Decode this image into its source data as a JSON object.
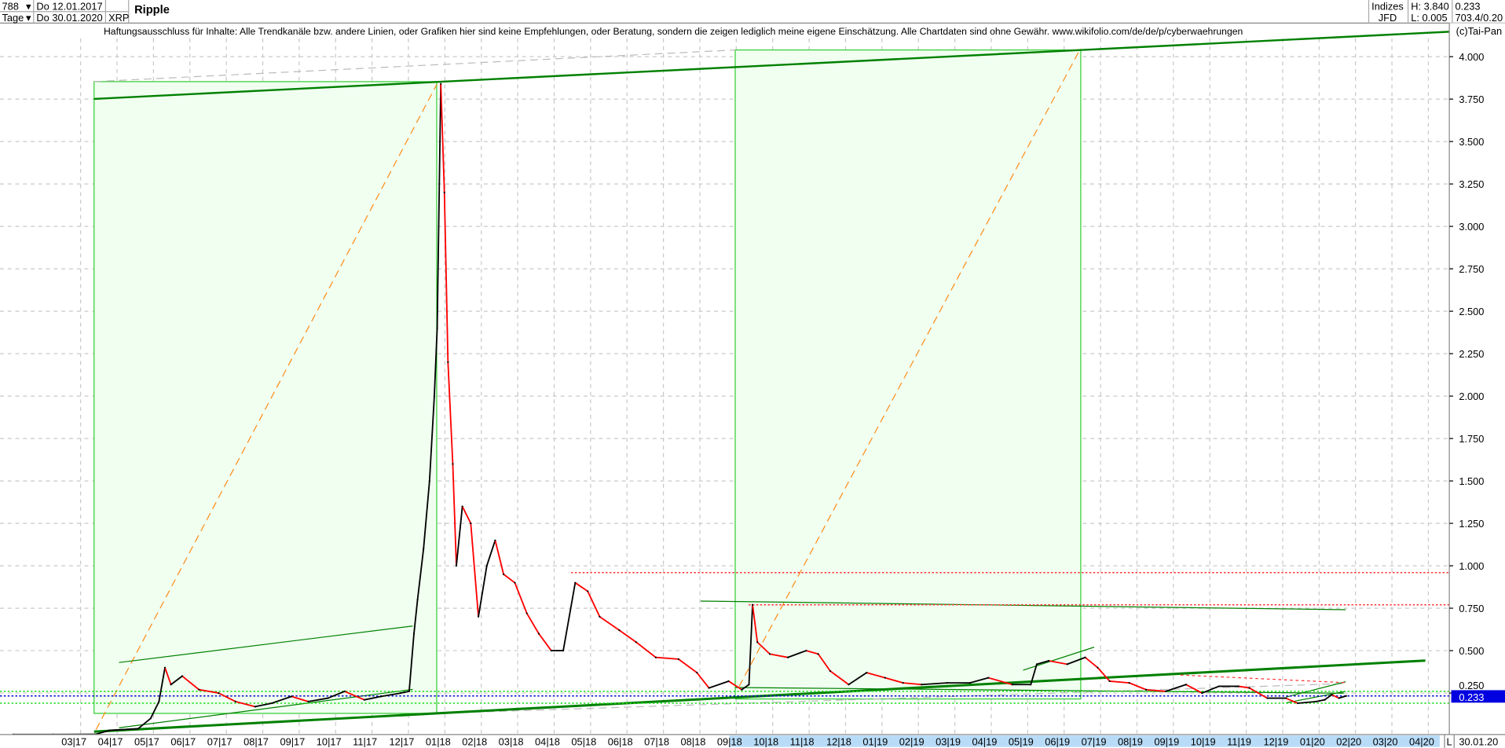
{
  "header": {
    "bars_count": "788",
    "interval": "Tage",
    "date_from": "Do 12.01.2017",
    "date_to": "Do 30.01.2020",
    "symbol": "XRP",
    "title": "Ripple",
    "market": "Indizes",
    "exchange": "JFD",
    "high": "H: 3.840",
    "low": "L: 0.005",
    "last": "0.233",
    "extra": "703.4/0.20",
    "disclaimer": "Haftungsausschluss für Inhalte: Alle Trendkanäle bzw. andere Linien, oder Grafiken hier sind keine Empfehlungen, oder Beratung, sondern die zeigen lediglich meine eigene Einschätzung. Alle Chartdaten sind ohne Gewähr.  www.wikifolio.com/de/de/p/cyberwaehrungen",
    "copyright": "(c)Tai-Pan"
  },
  "chart_data": {
    "type": "line",
    "title": "Ripple",
    "y_ticks": [
      "0.250",
      "0.500",
      "0.750",
      "1.000",
      "1.250",
      "1.500",
      "1.750",
      "2.000",
      "2.250",
      "2.500",
      "2.750",
      "3.000",
      "3.250",
      "3.500",
      "3.750",
      "4.000"
    ],
    "x_ticks": [
      "03|17",
      "04|17",
      "05|17",
      "06|17",
      "07|17",
      "08|17",
      "09|17",
      "10|17",
      "11|17",
      "12|17",
      "01|18",
      "02|18",
      "03|18",
      "04|18",
      "05|18",
      "06|18",
      "07|18",
      "08|18",
      "09|18",
      "10|18",
      "11|18",
      "12|18",
      "01|19",
      "02|19",
      "03|19",
      "04|19",
      "05|19",
      "06|19",
      "07|19",
      "08|19",
      "09|19",
      "10|19",
      "11|19",
      "12|19",
      "01|20",
      "02|20",
      "03|20",
      "04|20"
    ],
    "ylim": [
      0,
      4.1
    ],
    "grid": true,
    "last_value_label": "0.233",
    "axis_end_label": "L",
    "axis_end_date": "30.01.20",
    "colors": {
      "up": "#000000",
      "down": "#ff0000",
      "box": "#33cc33",
      "box_fill": "#f0fff0",
      "trend": "#008000",
      "diagonal": "#ff8c1a",
      "last_price": "#0000cc",
      "highlight": "#b8dcf8"
    },
    "levels": [
      {
        "value": 0.96,
        "color": "#ff3333",
        "style": "dotted"
      },
      {
        "value": 0.77,
        "color": "#ff3333",
        "style": "dotted"
      },
      {
        "value": 0.26,
        "color": "#22dd22",
        "style": "dotted"
      },
      {
        "value": 0.233,
        "color": "#0000cc",
        "style": "dotted"
      },
      {
        "value": 0.19,
        "color": "#22dd22",
        "style": "dotted"
      }
    ],
    "series": [
      {
        "points": [
          [
            "2017-01-12",
            0.006
          ],
          [
            "2017-02-15",
            0.006
          ],
          [
            "2017-03-20",
            0.007
          ],
          [
            "2017-04-01",
            0.03
          ],
          [
            "2017-04-25",
            0.04
          ],
          [
            "2017-05-05",
            0.1
          ],
          [
            "2017-05-12",
            0.2
          ],
          [
            "2017-05-17",
            0.4
          ],
          [
            "2017-05-22",
            0.3
          ],
          [
            "2017-06-01",
            0.35
          ],
          [
            "2017-06-15",
            0.27
          ],
          [
            "2017-07-01",
            0.25
          ],
          [
            "2017-07-15",
            0.2
          ],
          [
            "2017-08-01",
            0.17
          ],
          [
            "2017-08-15",
            0.19
          ],
          [
            "2017-09-01",
            0.23
          ],
          [
            "2017-09-15",
            0.2
          ],
          [
            "2017-10-01",
            0.22
          ],
          [
            "2017-10-15",
            0.26
          ],
          [
            "2017-11-01",
            0.21
          ],
          [
            "2017-11-15",
            0.23
          ],
          [
            "2017-12-01",
            0.25
          ],
          [
            "2017-12-08",
            0.26
          ],
          [
            "2017-12-12",
            0.6
          ],
          [
            "2017-12-15",
            0.8
          ],
          [
            "2017-12-20",
            1.1
          ],
          [
            "2017-12-25",
            1.5
          ],
          [
            "2017-12-29",
            2.0
          ],
          [
            "2018-01-01",
            2.4
          ],
          [
            "2018-01-04",
            3.84
          ],
          [
            "2018-01-07",
            3.2
          ],
          [
            "2018-01-10",
            2.2
          ],
          [
            "2018-01-14",
            1.6
          ],
          [
            "2018-01-17",
            1.0
          ],
          [
            "2018-01-22",
            1.35
          ],
          [
            "2018-01-29",
            1.25
          ],
          [
            "2018-02-05",
            0.7
          ],
          [
            "2018-02-12",
            1.0
          ],
          [
            "2018-02-19",
            1.15
          ],
          [
            "2018-02-26",
            0.95
          ],
          [
            "2018-03-05",
            0.9
          ],
          [
            "2018-03-15",
            0.72
          ],
          [
            "2018-03-25",
            0.6
          ],
          [
            "2018-04-05",
            0.5
          ],
          [
            "2018-04-15",
            0.5
          ],
          [
            "2018-04-25",
            0.9
          ],
          [
            "2018-05-05",
            0.85
          ],
          [
            "2018-05-15",
            0.7
          ],
          [
            "2018-06-01",
            0.62
          ],
          [
            "2018-06-15",
            0.55
          ],
          [
            "2018-07-01",
            0.46
          ],
          [
            "2018-07-20",
            0.45
          ],
          [
            "2018-08-05",
            0.37
          ],
          [
            "2018-08-15",
            0.28
          ],
          [
            "2018-09-01",
            0.32
          ],
          [
            "2018-09-12",
            0.27
          ],
          [
            "2018-09-18",
            0.3
          ],
          [
            "2018-09-21",
            0.77
          ],
          [
            "2018-09-25",
            0.55
          ],
          [
            "2018-10-05",
            0.48
          ],
          [
            "2018-10-20",
            0.46
          ],
          [
            "2018-11-05",
            0.5
          ],
          [
            "2018-11-15",
            0.48
          ],
          [
            "2018-11-25",
            0.38
          ],
          [
            "2018-12-10",
            0.3
          ],
          [
            "2018-12-25",
            0.37
          ],
          [
            "2019-01-10",
            0.34
          ],
          [
            "2019-01-25",
            0.31
          ],
          [
            "2019-02-10",
            0.3
          ],
          [
            "2019-03-01",
            0.31
          ],
          [
            "2019-03-20",
            0.31
          ],
          [
            "2019-04-05",
            0.34
          ],
          [
            "2019-04-25",
            0.3
          ],
          [
            "2019-05-10",
            0.3
          ],
          [
            "2019-05-15",
            0.42
          ],
          [
            "2019-05-25",
            0.44
          ],
          [
            "2019-06-10",
            0.42
          ],
          [
            "2019-06-25",
            0.46
          ],
          [
            "2019-07-05",
            0.4
          ],
          [
            "2019-07-15",
            0.32
          ],
          [
            "2019-08-01",
            0.31
          ],
          [
            "2019-08-15",
            0.27
          ],
          [
            "2019-09-01",
            0.26
          ],
          [
            "2019-09-18",
            0.3
          ],
          [
            "2019-10-01",
            0.25
          ],
          [
            "2019-10-15",
            0.29
          ],
          [
            "2019-11-01",
            0.29
          ],
          [
            "2019-11-10",
            0.28
          ],
          [
            "2019-11-25",
            0.22
          ],
          [
            "2019-12-10",
            0.22
          ],
          [
            "2019-12-20",
            0.19
          ],
          [
            "2020-01-05",
            0.2
          ],
          [
            "2020-01-12",
            0.21
          ],
          [
            "2020-01-18",
            0.24
          ],
          [
            "2020-01-24",
            0.22
          ],
          [
            "2020-01-30",
            0.233
          ]
        ]
      }
    ]
  }
}
